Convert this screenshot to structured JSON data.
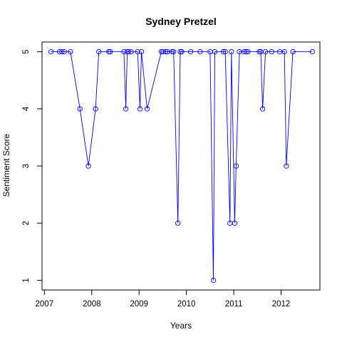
{
  "chart_data": {
    "type": "line",
    "title": "Sydney Pretzel",
    "xlabel": "Years",
    "ylabel": "Sentiment Score",
    "xlim": [
      2006.95,
      2012.82
    ],
    "ylim": [
      0.83,
      5.17
    ],
    "x_ticks": [
      2007,
      2008,
      2009,
      2010,
      2011,
      2012
    ],
    "x_tick_labels": [
      "2007",
      "2008",
      "2009",
      "2010",
      "2011",
      "2012"
    ],
    "y_ticks": [
      1,
      2,
      3,
      4,
      5
    ],
    "y_tick_labels": [
      "1",
      "2",
      "3",
      "4",
      "5"
    ],
    "series_color": "#0000ff",
    "markers": "open-circle",
    "grid": false,
    "legend": "none",
    "points": [
      [
        2007.14,
        5
      ],
      [
        2007.32,
        5
      ],
      [
        2007.37,
        5
      ],
      [
        2007.42,
        5
      ],
      [
        2007.55,
        5
      ],
      [
        2007.75,
        4
      ],
      [
        2007.93,
        3
      ],
      [
        2008.08,
        4
      ],
      [
        2008.15,
        5
      ],
      [
        2008.36,
        5
      ],
      [
        2008.39,
        5
      ],
      [
        2008.68,
        5
      ],
      [
        2008.72,
        4
      ],
      [
        2008.75,
        5
      ],
      [
        2008.78,
        5
      ],
      [
        2008.83,
        5
      ],
      [
        2008.97,
        5
      ],
      [
        2009.02,
        4
      ],
      [
        2009.05,
        5
      ],
      [
        2009.17,
        4
      ],
      [
        2009.47,
        5
      ],
      [
        2009.5,
        5
      ],
      [
        2009.56,
        5
      ],
      [
        2009.6,
        5
      ],
      [
        2009.7,
        5
      ],
      [
        2009.73,
        5
      ],
      [
        2009.82,
        2
      ],
      [
        2009.87,
        5
      ],
      [
        2009.9,
        5
      ],
      [
        2010.09,
        5
      ],
      [
        2010.29,
        5
      ],
      [
        2010.5,
        5
      ],
      [
        2010.57,
        1
      ],
      [
        2010.6,
        5
      ],
      [
        2010.78,
        5
      ],
      [
        2010.82,
        5
      ],
      [
        2010.92,
        2
      ],
      [
        2010.95,
        5
      ],
      [
        2011.02,
        2
      ],
      [
        2011.05,
        3
      ],
      [
        2011.12,
        5
      ],
      [
        2011.22,
        5
      ],
      [
        2011.26,
        5
      ],
      [
        2011.3,
        5
      ],
      [
        2011.54,
        5
      ],
      [
        2011.57,
        5
      ],
      [
        2011.61,
        4
      ],
      [
        2011.67,
        5
      ],
      [
        2011.8,
        5
      ],
      [
        2011.97,
        5
      ],
      [
        2012.07,
        5
      ],
      [
        2012.11,
        3
      ],
      [
        2012.25,
        5
      ],
      [
        2012.66,
        5
      ]
    ]
  }
}
